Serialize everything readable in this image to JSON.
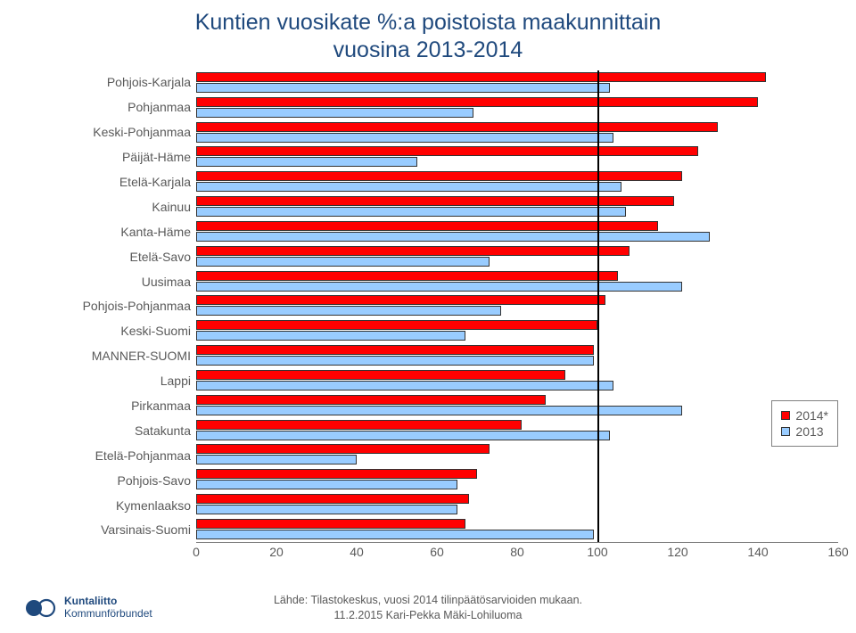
{
  "title_line1": "Kuntien vuosikate %:a poistoista maakunnittain",
  "title_line2": "vuosina 2013-2014",
  "title_color": "#1f497d",
  "title_fontsize": 25,
  "chart": {
    "type": "bar-horizontal-grouped",
    "background_color": "#ffffff",
    "label_fontsize": 14,
    "label_color": "#595959",
    "xlim": [
      0,
      160
    ],
    "xtick_step": 20,
    "xticks": [
      0,
      20,
      40,
      60,
      80,
      100,
      120,
      140,
      160
    ],
    "reference_line": {
      "x": 100,
      "color": "#000000",
      "width": 2
    },
    "bar_border": "#333333",
    "series": [
      {
        "key": "s2014",
        "label": "2014*",
        "color": "#ff0000"
      },
      {
        "key": "s2013",
        "label": "2013",
        "color": "#99ccff"
      }
    ],
    "legend": {
      "border": "#808080",
      "position": "right-middle"
    },
    "categories": [
      {
        "label": "Pohjois-Karjala",
        "s2014": 142,
        "s2013": 103
      },
      {
        "label": "Pohjanmaa",
        "s2014": 140,
        "s2013": 69
      },
      {
        "label": "Keski-Pohjanmaa",
        "s2014": 130,
        "s2013": 104
      },
      {
        "label": "Päijät-Häme",
        "s2014": 125,
        "s2013": 55
      },
      {
        "label": "Etelä-Karjala",
        "s2014": 121,
        "s2013": 106
      },
      {
        "label": "Kainuu",
        "s2014": 119,
        "s2013": 107
      },
      {
        "label": "Kanta-Häme",
        "s2014": 115,
        "s2013": 128
      },
      {
        "label": "Etelä-Savo",
        "s2014": 108,
        "s2013": 73
      },
      {
        "label": "Uusimaa",
        "s2014": 105,
        "s2013": 121
      },
      {
        "label": "Pohjois-Pohjanmaa",
        "s2014": 102,
        "s2013": 76
      },
      {
        "label": "Keski-Suomi",
        "s2014": 100,
        "s2013": 67
      },
      {
        "label": "MANNER-SUOMI",
        "s2014": 99,
        "s2013": 99
      },
      {
        "label": "Lappi",
        "s2014": 92,
        "s2013": 104
      },
      {
        "label": "Pirkanmaa",
        "s2014": 87,
        "s2013": 121
      },
      {
        "label": "Satakunta",
        "s2014": 81,
        "s2013": 103
      },
      {
        "label": "Etelä-Pohjanmaa",
        "s2014": 73,
        "s2013": 40
      },
      {
        "label": "Pohjois-Savo",
        "s2014": 70,
        "s2013": 65
      },
      {
        "label": "Kymenlaakso",
        "s2014": 68,
        "s2013": 65
      },
      {
        "label": "Varsinais-Suomi",
        "s2014": 67,
        "s2013": 99
      }
    ]
  },
  "footer": {
    "source_line": "Lähde: Tilastokeskus, vuosi 2014 tilinpäätösarvioiden mukaan.",
    "attribution": "11.2.2015 Kari-Pekka Mäki-Lohiluoma",
    "logo_line1": "Kuntaliitto",
    "logo_line2": "Kommunförbundet",
    "logo_color": "#1f497d"
  }
}
